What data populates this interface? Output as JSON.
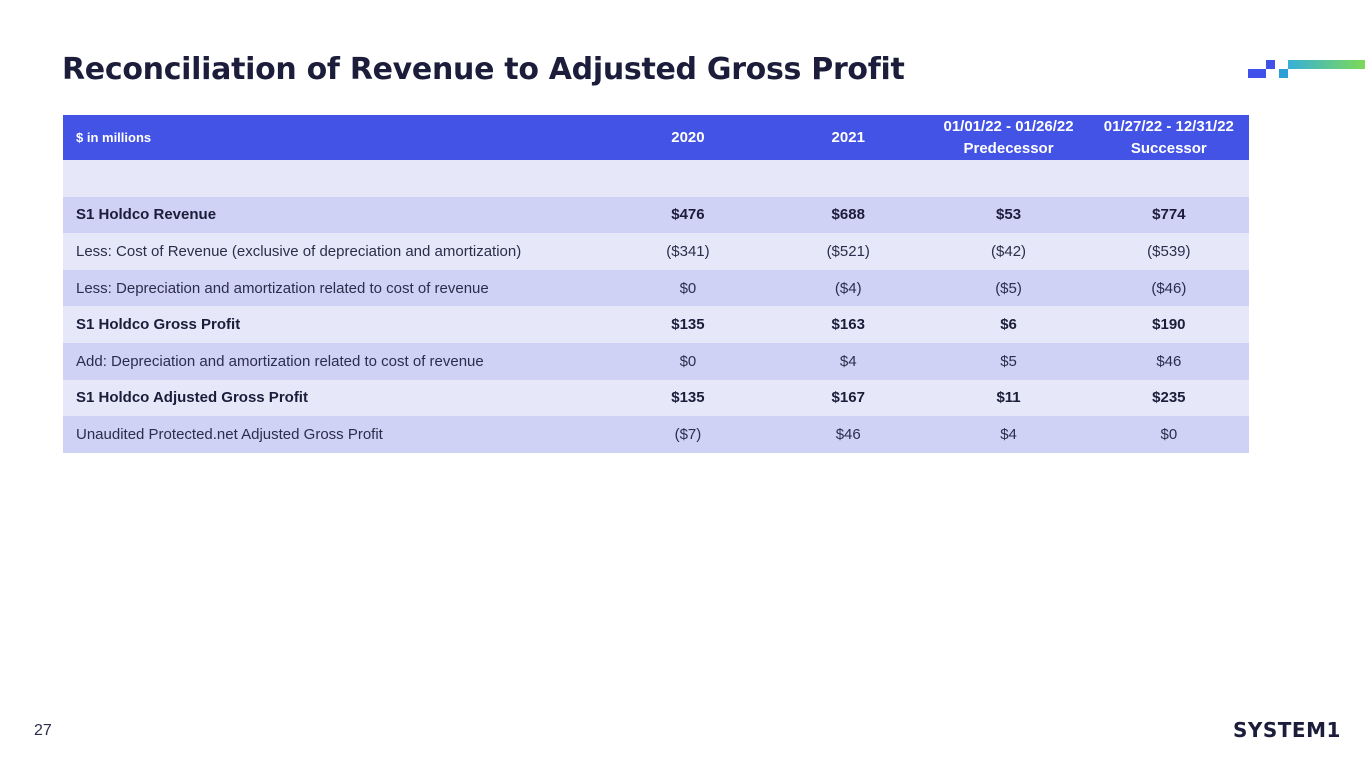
{
  "slide": {
    "title": "Reconciliation of Revenue to Adjusted Gross Profit",
    "page_number": "27",
    "logo_text": "SYSTEM1"
  },
  "table": {
    "header": {
      "label": "$ in millions",
      "col1": "2020",
      "col2": "2021",
      "col3_line1": "01/01/22 - 01/26/22",
      "col3_line2": "Predecessor",
      "col4_line1": "01/27/22 - 12/31/22",
      "col4_line2": "Successor"
    },
    "rows": [
      {
        "label": "S1 Holdco Revenue",
        "v2020": "$476",
        "v2021": "$688",
        "pred": "$53",
        "succ": "$774"
      },
      {
        "label": "Less: Cost of Revenue (exclusive of depreciation and amortization)",
        "v2020": "($341)",
        "v2021": "($521)",
        "pred": "($42)",
        "succ": "($539)"
      },
      {
        "label": "Less: Depreciation and amortization related to cost of revenue",
        "v2020": "$0",
        "v2021": "($4)",
        "pred": "($5)",
        "succ": "($46)"
      },
      {
        "label": "S1 Holdco Gross Profit",
        "v2020": "$135",
        "v2021": "$163",
        "pred": "$6",
        "succ": "$190"
      },
      {
        "label": "Add: Depreciation and amortization related to cost of revenue",
        "v2020": "$0",
        "v2021": "$4",
        "pred": "$5",
        "succ": "$46"
      },
      {
        "label": "S1 Holdco Adjusted Gross Profit",
        "v2020": "$135",
        "v2021": "$167",
        "pred": "$11",
        "succ": "$235"
      },
      {
        "label": "Unaudited Protected.net Adjusted Gross Profit",
        "v2020": "($7)",
        "v2021": "$46",
        "pred": "$4",
        "succ": "$0"
      }
    ]
  },
  "colors": {
    "header_bg": "#4353e6",
    "row_dark": "#cfd1f5",
    "row_light": "#e6e8fa",
    "title": "#1b1d3a"
  }
}
